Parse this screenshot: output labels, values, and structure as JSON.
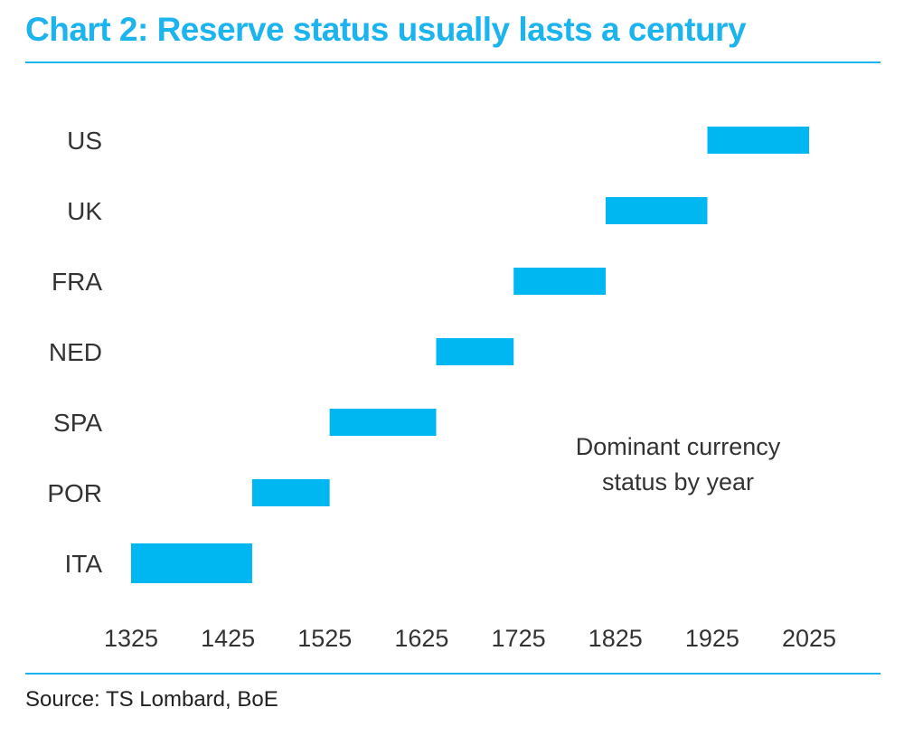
{
  "title": "Chart 2: Reserve status usually lasts a century",
  "source": "Source: TS Lombard, BoE",
  "colors": {
    "accent": "#1bb4ee",
    "bar": "#00b7f1",
    "text": "#333333"
  },
  "chart_data": {
    "type": "bar",
    "orientation": "horizontal-range",
    "title": "Chart 2: Reserve status usually lasts a century",
    "xlabel": "",
    "ylabel": "",
    "categories": [
      "US",
      "UK",
      "FRA",
      "NED",
      "SPA",
      "POR",
      "ITA"
    ],
    "ranges": [
      {
        "category": "US",
        "start": 1920,
        "end": 2025
      },
      {
        "category": "UK",
        "start": 1815,
        "end": 1920
      },
      {
        "category": "FRA",
        "start": 1720,
        "end": 1815
      },
      {
        "category": "NED",
        "start": 1640,
        "end": 1720
      },
      {
        "category": "SPA",
        "start": 1530,
        "end": 1640
      },
      {
        "category": "POR",
        "start": 1450,
        "end": 1530
      },
      {
        "category": "ITA",
        "start": 1325,
        "end": 1450
      }
    ],
    "x_ticks": [
      1325,
      1425,
      1525,
      1625,
      1725,
      1825,
      1925,
      2025
    ],
    "xlim": [
      1325,
      2025
    ],
    "grid": false,
    "annotation": [
      "Dominant currency",
      "status by year"
    ]
  }
}
